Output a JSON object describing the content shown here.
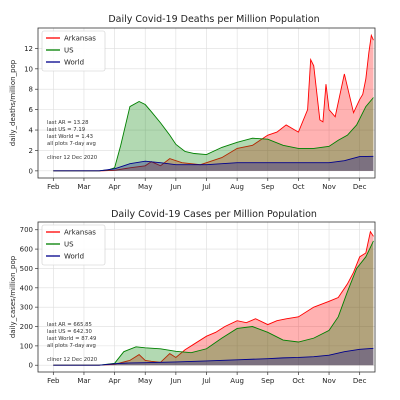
{
  "months": [
    "Feb",
    "Mar",
    "Apr",
    "May",
    "Jun",
    "Jul",
    "Aug",
    "Sep",
    "Oct",
    "Nov",
    "Dec"
  ],
  "colors": {
    "Arkansas": "#ff0000",
    "US": "#008000",
    "World": "#00008b"
  },
  "charts": [
    {
      "title": "Daily Covid-19 Deaths per Million Population",
      "ylabel": "daily_deaths/million_pop",
      "legend": [
        "Arkansas",
        "US",
        "World"
      ],
      "stats": [
        "last AR = 13.28",
        "last US = 7.19",
        "last World = 1.43",
        "all plots 7-day avg",
        "",
        "cliner 12 Dec 2020"
      ]
    },
    {
      "title": "Daily Covid-19 Cases per Million Population",
      "ylabel": "daily_cases/million_pop",
      "legend": [
        "Arkansas",
        "US",
        "World"
      ],
      "stats": [
        "last AR = 665.85",
        "last US = 642.30",
        "last World = 87.49",
        "all plots 7-day avg",
        "",
        "cliner 12 Dec 2020"
      ]
    }
  ],
  "chart_data": [
    {
      "type": "area",
      "title": "Daily Covid-19 Deaths per Million Population",
      "ylabel": "daily_deaths/million_pop",
      "x_unit": "month index (0 = Feb 1, 2020)",
      "xlim": [
        -0.5,
        10.5
      ],
      "ylim": [
        -0.7,
        14
      ],
      "yticks": [
        0,
        2,
        4,
        6,
        8,
        10,
        12
      ],
      "grid": true,
      "legend_position": "upper-left",
      "series": [
        {
          "name": "Arkansas",
          "x": [
            0,
            1.6,
            2,
            2.5,
            3,
            3.2,
            3.5,
            3.8,
            4.2,
            4.5,
            4.8,
            5,
            5.5,
            6,
            6.5,
            7,
            7.3,
            7.6,
            8,
            8.3,
            8.4,
            8.5,
            8.7,
            8.8,
            8.9,
            9,
            9.2,
            9.5,
            9.8,
            10,
            10.1,
            10.2,
            10.3,
            10.38,
            10.45
          ],
          "y": [
            0,
            0,
            0.05,
            0.3,
            0.5,
            0.9,
            0.5,
            1.2,
            0.8,
            0.7,
            0.6,
            0.8,
            1.3,
            2.2,
            2.5,
            3.5,
            3.8,
            4.5,
            3.8,
            6.0,
            10.9,
            10.3,
            5.0,
            4.8,
            8.5,
            6.0,
            5.3,
            9.5,
            5.7,
            7.0,
            7.5,
            9.0,
            11.6,
            13.28,
            12.8
          ]
        },
        {
          "name": "US",
          "x": [
            0,
            1.5,
            1.8,
            2,
            2.2,
            2.5,
            2.8,
            3,
            3.2,
            3.5,
            3.8,
            4,
            4.3,
            4.6,
            5,
            5.5,
            6,
            6.5,
            7,
            7.5,
            8,
            8.5,
            9,
            9.3,
            9.6,
            9.9,
            10.2,
            10.45
          ],
          "y": [
            0,
            0,
            0.1,
            0.3,
            2.5,
            6.3,
            6.8,
            6.5,
            5.8,
            4.7,
            3.5,
            2.6,
            1.9,
            1.7,
            1.6,
            2.3,
            2.8,
            3.2,
            3.1,
            2.5,
            2.2,
            2.2,
            2.4,
            3.0,
            3.5,
            4.5,
            6.3,
            7.19
          ]
        },
        {
          "name": "World",
          "x": [
            0,
            1.5,
            2,
            2.5,
            3,
            3.5,
            4,
            5,
            6,
            7,
            8,
            9,
            9.5,
            10,
            10.45
          ],
          "y": [
            0,
            0,
            0.2,
            0.7,
            0.95,
            0.8,
            0.6,
            0.6,
            0.8,
            0.8,
            0.8,
            0.8,
            1.0,
            1.4,
            1.43
          ]
        }
      ]
    },
    {
      "type": "area",
      "title": "Daily Covid-19 Cases per Million Population",
      "ylabel": "daily_cases/million_pop",
      "x_unit": "month index (0 = Feb 1, 2020)",
      "xlim": [
        -0.5,
        10.5
      ],
      "ylim": [
        -35,
        740
      ],
      "yticks": [
        0,
        100,
        200,
        300,
        400,
        500,
        600,
        700
      ],
      "grid": true,
      "legend_position": "upper-left",
      "series": [
        {
          "name": "Arkansas",
          "x": [
            0,
            1.5,
            2,
            2.5,
            2.8,
            3,
            3.2,
            3.5,
            3.8,
            4,
            4.3,
            4.6,
            5,
            5.3,
            5.6,
            6,
            6.3,
            6.6,
            7,
            7.3,
            7.6,
            8,
            8.5,
            9,
            9.3,
            9.6,
            9.8,
            10,
            10.2,
            10.35,
            10.45
          ],
          "y": [
            0,
            0,
            5,
            25,
            55,
            25,
            20,
            15,
            60,
            40,
            80,
            110,
            150,
            170,
            200,
            230,
            220,
            240,
            210,
            230,
            240,
            250,
            300,
            330,
            350,
            420,
            480,
            560,
            580,
            690,
            665.85
          ]
        },
        {
          "name": "US",
          "x": [
            0,
            1.5,
            2,
            2.3,
            2.7,
            3,
            3.5,
            4,
            4.5,
            5,
            5.5,
            6,
            6.5,
            7,
            7.5,
            8,
            8.5,
            9,
            9.3,
            9.6,
            9.9,
            10.2,
            10.45
          ],
          "y": [
            0,
            0,
            10,
            70,
            95,
            90,
            85,
            72,
            65,
            85,
            140,
            190,
            200,
            170,
            130,
            120,
            140,
            180,
            250,
            380,
            500,
            560,
            642.3
          ]
        },
        {
          "name": "World",
          "x": [
            0,
            1.5,
            2,
            2.5,
            3,
            4,
            5,
            6,
            7,
            7.5,
            8,
            8.5,
            9,
            9.5,
            10,
            10.45
          ],
          "y": [
            0,
            0,
            8,
            12,
            13,
            17,
            22,
            28,
            34,
            38,
            40,
            44,
            52,
            70,
            82,
            87.49
          ]
        }
      ]
    }
  ]
}
